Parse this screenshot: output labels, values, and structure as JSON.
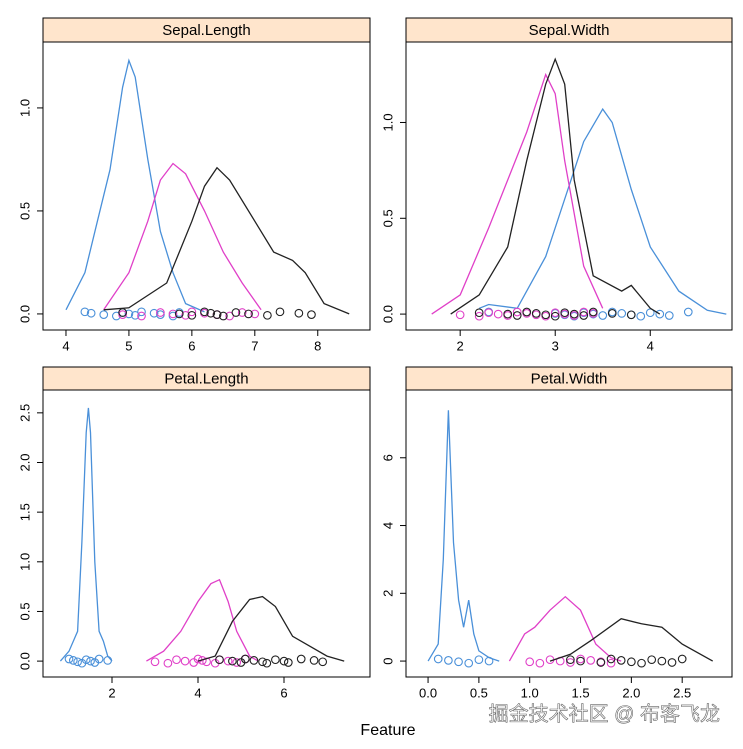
{
  "x_label": "Feature",
  "watermark": "掘金技术社区 @ 布客飞龙",
  "chart_data": [
    {
      "type": "line",
      "title": "Sepal.Length",
      "xlim": [
        3.635,
        8.83
      ],
      "ylim": [
        -0.078,
        1.32
      ],
      "xticks": [
        4,
        5,
        6,
        7,
        8
      ],
      "yticks": [
        {
          "value": 0,
          "label": "0.0"
        },
        {
          "value": 0.5,
          "label": "0.5"
        },
        {
          "value": 1,
          "label": "1.0"
        }
      ],
      "series": [
        {
          "color": "#4a90d9",
          "x": [
            4.0,
            4.3,
            4.5,
            4.7,
            4.9,
            5.0,
            5.1,
            5.3,
            5.5,
            5.7,
            5.9,
            6.2
          ],
          "values": [
            0.02,
            0.2,
            0.45,
            0.7,
            1.1,
            1.23,
            1.15,
            0.75,
            0.4,
            0.2,
            0.05,
            0.01
          ],
          "rug": [
            4.3,
            4.4,
            4.6,
            4.8,
            4.9,
            5.0,
            5.1,
            5.2,
            5.4,
            5.5,
            5.7,
            5.8
          ]
        },
        {
          "color": "#e040c8",
          "x": [
            4.6,
            5.0,
            5.3,
            5.5,
            5.7,
            5.9,
            6.2,
            6.5,
            6.8,
            7.1
          ],
          "values": [
            0.02,
            0.2,
            0.45,
            0.65,
            0.73,
            0.68,
            0.5,
            0.3,
            0.15,
            0.02
          ],
          "rug": [
            4.9,
            5.2,
            5.5,
            5.7,
            5.9,
            6.0,
            6.2,
            6.4,
            6.6,
            6.8,
            7.0
          ]
        },
        {
          "color": "#222222",
          "x": [
            4.6,
            5.0,
            5.6,
            6.0,
            6.2,
            6.4,
            6.6,
            7.0,
            7.3,
            7.6,
            7.8,
            8.1,
            8.5
          ],
          "values": [
            0.02,
            0.03,
            0.15,
            0.45,
            0.62,
            0.71,
            0.65,
            0.45,
            0.3,
            0.26,
            0.2,
            0.05,
            0.0
          ],
          "rug": [
            4.9,
            5.8,
            6.0,
            6.2,
            6.3,
            6.4,
            6.5,
            6.7,
            6.9,
            7.2,
            7.4,
            7.7,
            7.9
          ]
        }
      ]
    },
    {
      "type": "line",
      "title": "Sepal.Width",
      "xlim": [
        1.43,
        4.86
      ],
      "ylim": [
        -0.083,
        1.42
      ],
      "xticks": [
        2,
        3,
        4
      ],
      "yticks": [
        {
          "value": 0,
          "label": "0.0"
        },
        {
          "value": 0.5,
          "label": "0.5"
        },
        {
          "value": 1,
          "label": "1.0"
        }
      ],
      "series": [
        {
          "color": "#4a90d9",
          "x": [
            2.2,
            2.3,
            2.6,
            2.9,
            3.1,
            3.3,
            3.5,
            3.6,
            3.8,
            4.0,
            4.3,
            4.6,
            4.8
          ],
          "values": [
            0.03,
            0.05,
            0.03,
            0.3,
            0.6,
            0.9,
            1.07,
            1.0,
            0.65,
            0.35,
            0.12,
            0.02,
            0.0
          ],
          "rug": [
            2.3,
            3.0,
            3.1,
            3.2,
            3.3,
            3.4,
            3.5,
            3.6,
            3.7,
            3.8,
            3.9,
            4.0,
            4.1,
            4.2,
            4.4
          ]
        },
        {
          "color": "#e040c8",
          "x": [
            1.7,
            2.0,
            2.3,
            2.5,
            2.7,
            2.9,
            3.0,
            3.1,
            3.3,
            3.5
          ],
          "values": [
            0.0,
            0.1,
            0.45,
            0.7,
            0.95,
            1.25,
            1.15,
            0.8,
            0.25,
            0.03
          ],
          "rug": [
            2.0,
            2.2,
            2.3,
            2.4,
            2.5,
            2.6,
            2.7,
            2.8,
            2.9,
            3.0,
            3.1,
            3.2,
            3.3,
            3.4
          ]
        },
        {
          "color": "#222222",
          "x": [
            1.9,
            2.2,
            2.5,
            2.7,
            2.9,
            3.0,
            3.1,
            3.2,
            3.4,
            3.7,
            3.8,
            4.0,
            4.1
          ],
          "values": [
            0.0,
            0.1,
            0.35,
            0.8,
            1.2,
            1.33,
            1.2,
            0.7,
            0.2,
            0.12,
            0.15,
            0.03,
            0.0
          ],
          "rug": [
            2.2,
            2.5,
            2.6,
            2.7,
            2.8,
            2.9,
            3.0,
            3.1,
            3.2,
            3.3,
            3.4,
            3.6,
            3.8
          ]
        }
      ]
    },
    {
      "type": "line",
      "title": "Petal.Length",
      "xlim": [
        0.395,
        8.0
      ],
      "ylim": [
        -0.16,
        2.73
      ],
      "xticks": [
        2,
        4,
        6
      ],
      "yticks": [
        {
          "value": 0,
          "label": "0.0"
        },
        {
          "value": 0.5,
          "label": "0.5"
        },
        {
          "value": 1,
          "label": "1.0"
        },
        {
          "value": 1.5,
          "label": "1.5"
        },
        {
          "value": 2,
          "label": "2.0"
        },
        {
          "value": 2.5,
          "label": "2.5"
        }
      ],
      "series": [
        {
          "color": "#4a90d9",
          "x": [
            0.8,
            1.0,
            1.2,
            1.3,
            1.4,
            1.45,
            1.5,
            1.6,
            1.7,
            1.8,
            1.9,
            2.0
          ],
          "values": [
            0.0,
            0.1,
            0.3,
            1.2,
            2.3,
            2.55,
            2.3,
            1.0,
            0.3,
            0.2,
            0.05,
            0.0
          ],
          "rug": [
            1.0,
            1.1,
            1.2,
            1.3,
            1.4,
            1.5,
            1.6,
            1.7,
            1.9
          ]
        },
        {
          "color": "#e040c8",
          "x": [
            2.8,
            3.2,
            3.6,
            4.0,
            4.3,
            4.5,
            4.7,
            4.9,
            5.2,
            5.4
          ],
          "values": [
            0.0,
            0.1,
            0.3,
            0.6,
            0.78,
            0.82,
            0.6,
            0.3,
            0.05,
            0.0
          ],
          "rug": [
            3.0,
            3.3,
            3.5,
            3.7,
            3.9,
            4.0,
            4.1,
            4.2,
            4.4,
            4.5,
            4.7,
            4.9,
            5.1
          ]
        },
        {
          "color": "#222222",
          "x": [
            4.0,
            4.4,
            4.8,
            5.2,
            5.5,
            5.8,
            6.2,
            6.6,
            7.0,
            7.4
          ],
          "values": [
            0.0,
            0.05,
            0.4,
            0.62,
            0.65,
            0.55,
            0.25,
            0.15,
            0.05,
            0.0
          ],
          "rug": [
            4.5,
            4.8,
            5.0,
            5.1,
            5.3,
            5.5,
            5.6,
            5.8,
            6.0,
            6.1,
            6.4,
            6.7,
            6.9
          ]
        }
      ]
    },
    {
      "type": "line",
      "title": "Petal.Width",
      "xlim": [
        -0.217,
        2.99
      ],
      "ylim": [
        -0.47,
        8.0
      ],
      "xticks": [
        {
          "value": 0,
          "label": "0.0"
        },
        {
          "value": 0.5,
          "label": "0.5"
        },
        {
          "value": 1,
          "label": "1.0"
        },
        {
          "value": 1.5,
          "label": "1.5"
        },
        {
          "value": 2,
          "label": "2.0"
        },
        {
          "value": 2.5,
          "label": "2.5"
        }
      ],
      "yticks": [
        0,
        2,
        4,
        6
      ],
      "series": [
        {
          "color": "#4a90d9",
          "x": [
            0.0,
            0.1,
            0.15,
            0.2,
            0.25,
            0.3,
            0.35,
            0.4,
            0.45,
            0.5,
            0.6,
            0.7
          ],
          "values": [
            0.0,
            0.5,
            3,
            7.4,
            3.5,
            1.8,
            1.0,
            1.8,
            0.8,
            0.3,
            0.1,
            0.0
          ],
          "rug": [
            0.1,
            0.2,
            0.3,
            0.4,
            0.5,
            0.6
          ]
        },
        {
          "color": "#e040c8",
          "x": [
            0.8,
            0.95,
            1.05,
            1.2,
            1.35,
            1.5,
            1.65,
            1.8,
            1.9
          ],
          "values": [
            0.0,
            0.8,
            1.0,
            1.5,
            1.9,
            1.5,
            0.5,
            0.1,
            0.0
          ],
          "rug": [
            1.0,
            1.1,
            1.2,
            1.3,
            1.4,
            1.5,
            1.6,
            1.7,
            1.8
          ]
        },
        {
          "color": "#222222",
          "x": [
            1.2,
            1.4,
            1.6,
            1.9,
            2.1,
            2.3,
            2.5,
            2.8
          ],
          "values": [
            0.0,
            0.2,
            0.6,
            1.25,
            1.1,
            1.0,
            0.5,
            0.0
          ],
          "rug": [
            1.4,
            1.5,
            1.7,
            1.8,
            1.9,
            2.0,
            2.1,
            2.2,
            2.3,
            2.4,
            2.5
          ]
        }
      ]
    }
  ]
}
